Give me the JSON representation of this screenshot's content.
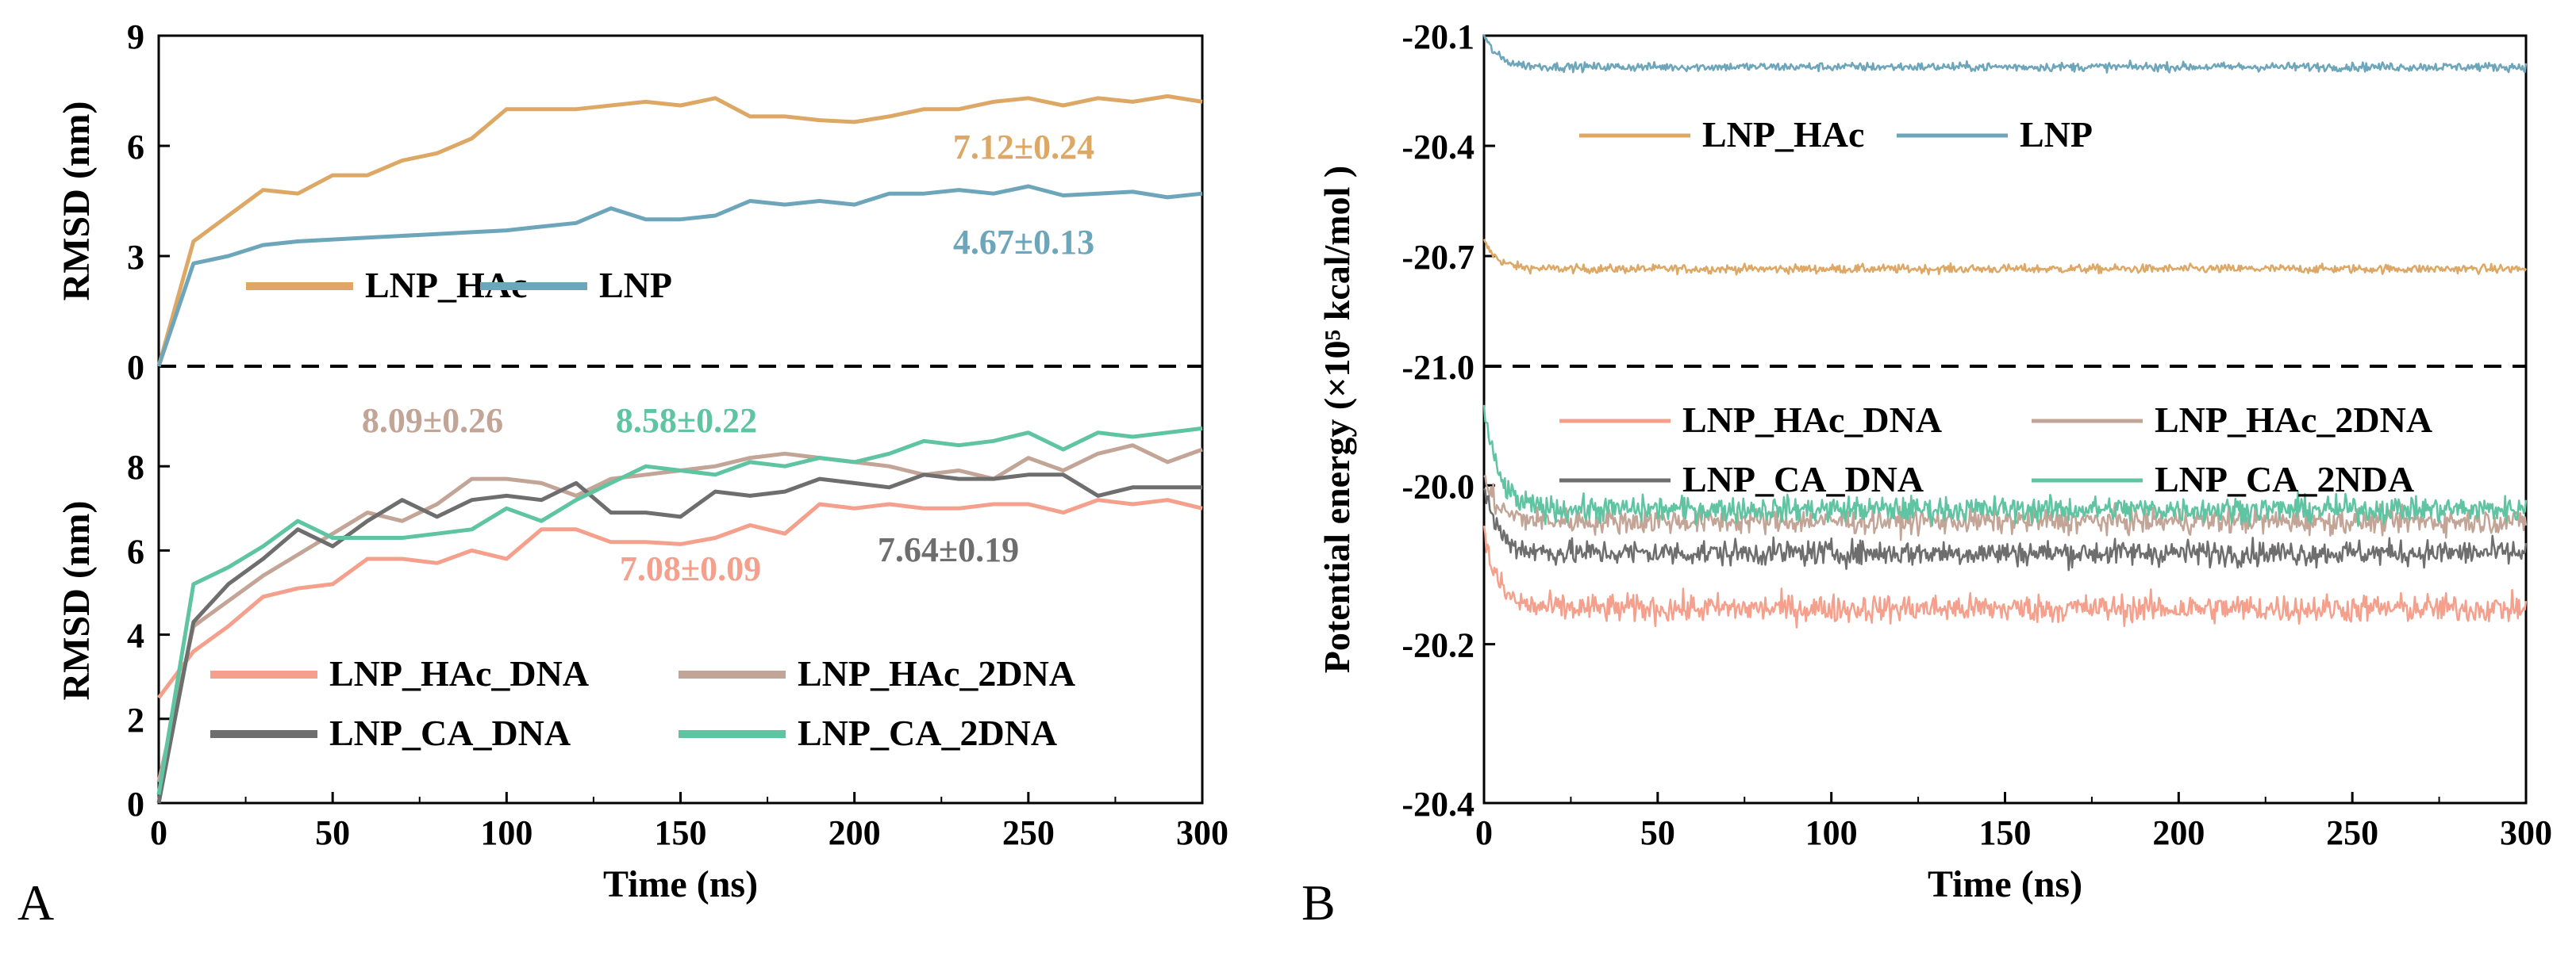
{
  "chart_data": [
    {
      "id": "A",
      "panel_label": "A",
      "type": "line",
      "xlabel": "Time (ns)",
      "xlim": [
        0,
        300
      ],
      "xticks": [
        "0",
        "50",
        "100",
        "150",
        "200",
        "250",
        "300"
      ],
      "subplots": [
        {
          "ylabel": "RMSD (nm)",
          "ylim": [
            0,
            9
          ],
          "yticks": [
            "0",
            "3",
            "6",
            "9"
          ],
          "legend": "middle-left, horizontal",
          "series": [
            {
              "name": "LNP_HAc",
              "color": "#DDA865",
              "x": [
                0,
                10,
                20,
                30,
                40,
                50,
                60,
                70,
                80,
                90,
                100,
                110,
                120,
                130,
                140,
                150,
                160,
                170,
                180,
                190,
                200,
                210,
                220,
                230,
                240,
                250,
                260,
                270,
                280,
                290,
                300
              ],
              "values": [
                0,
                3.4,
                4.1,
                4.8,
                4.7,
                5.2,
                5.2,
                5.6,
                5.8,
                6.2,
                7.0,
                7.0,
                7.0,
                7.1,
                7.2,
                7.1,
                7.3,
                6.8,
                6.8,
                6.7,
                6.65,
                6.8,
                7.0,
                7.0,
                7.2,
                7.3,
                7.1,
                7.3,
                7.2,
                7.35,
                7.2
              ]
            },
            {
              "name": "LNP",
              "color": "#6DA6BB",
              "x": [
                0,
                10,
                20,
                30,
                40,
                50,
                60,
                70,
                80,
                90,
                100,
                110,
                120,
                130,
                140,
                150,
                160,
                170,
                180,
                190,
                200,
                210,
                220,
                230,
                240,
                250,
                260,
                270,
                280,
                290,
                300
              ],
              "values": [
                0,
                2.8,
                3.0,
                3.3,
                3.4,
                3.45,
                3.5,
                3.55,
                3.6,
                3.65,
                3.7,
                3.8,
                3.9,
                4.3,
                4.0,
                4.0,
                4.1,
                4.5,
                4.4,
                4.5,
                4.4,
                4.7,
                4.7,
                4.8,
                4.7,
                4.9,
                4.65,
                4.7,
                4.75,
                4.6,
                4.7
              ]
            }
          ],
          "annotations": [
            {
              "text": "7.12±0.24",
              "color": "#DDA865"
            },
            {
              "text": "4.67±0.13",
              "color": "#6DA6BB"
            }
          ]
        },
        {
          "ylabel": "RMSD (nm)",
          "ylim": [
            0,
            10
          ],
          "yticks": [
            "0",
            "2",
            "4",
            "6",
            "8"
          ],
          "legend": "bottom-left, 2x2",
          "series": [
            {
              "name": "LNP_HAc_DNA",
              "color": "#F4A08C",
              "x": [
                0,
                10,
                20,
                30,
                40,
                50,
                60,
                70,
                80,
                90,
                100,
                110,
                120,
                130,
                140,
                150,
                160,
                170,
                180,
                190,
                200,
                210,
                220,
                230,
                240,
                250,
                260,
                270,
                280,
                290,
                300
              ],
              "values": [
                2.5,
                3.6,
                4.2,
                4.9,
                5.1,
                5.2,
                5.8,
                5.8,
                5.7,
                6.0,
                5.8,
                6.5,
                6.5,
                6.2,
                6.2,
                6.15,
                6.3,
                6.6,
                6.4,
                7.1,
                7.0,
                7.1,
                7.0,
                7.0,
                7.1,
                7.1,
                6.9,
                7.2,
                7.1,
                7.2,
                7.0
              ]
            },
            {
              "name": "LNP_HAc_2DNA",
              "color": "#C3A597",
              "x": [
                0,
                10,
                20,
                30,
                40,
                50,
                60,
                70,
                80,
                90,
                100,
                110,
                120,
                130,
                140,
                150,
                160,
                170,
                180,
                190,
                200,
                210,
                220,
                230,
                240,
                250,
                260,
                270,
                280,
                290,
                300
              ],
              "values": [
                0.5,
                4.2,
                4.8,
                5.4,
                5.9,
                6.4,
                6.9,
                6.7,
                7.1,
                7.7,
                7.7,
                7.6,
                7.3,
                7.7,
                7.8,
                7.9,
                8.0,
                8.2,
                8.3,
                8.2,
                8.1,
                8.0,
                7.8,
                7.9,
                7.7,
                8.2,
                7.9,
                8.3,
                8.5,
                8.1,
                8.4
              ]
            },
            {
              "name": "LNP_CA_DNA",
              "color": "#6E6E6E",
              "x": [
                0,
                10,
                20,
                30,
                40,
                50,
                60,
                70,
                80,
                90,
                100,
                110,
                120,
                130,
                140,
                150,
                160,
                170,
                180,
                190,
                200,
                210,
                220,
                230,
                240,
                250,
                260,
                270,
                280,
                290,
                300
              ],
              "values": [
                0,
                4.3,
                5.2,
                5.8,
                6.5,
                6.1,
                6.7,
                7.2,
                6.8,
                7.2,
                7.3,
                7.2,
                7.6,
                6.9,
                6.9,
                6.8,
                7.4,
                7.3,
                7.4,
                7.7,
                7.6,
                7.5,
                7.8,
                7.7,
                7.7,
                7.8,
                7.8,
                7.3,
                7.5,
                7.5,
                7.5
              ]
            },
            {
              "name": "LNP_CA_2DNA",
              "color": "#5FC4A1",
              "x": [
                0,
                10,
                20,
                30,
                40,
                50,
                60,
                70,
                80,
                90,
                100,
                110,
                120,
                130,
                140,
                150,
                160,
                170,
                180,
                190,
                200,
                210,
                220,
                230,
                240,
                250,
                260,
                270,
                280,
                290,
                300
              ],
              "values": [
                0.2,
                5.2,
                5.6,
                6.1,
                6.7,
                6.3,
                6.3,
                6.3,
                6.4,
                6.5,
                7.0,
                6.7,
                7.2,
                7.6,
                8.0,
                7.9,
                7.8,
                8.1,
                8.0,
                8.2,
                8.1,
                8.3,
                8.6,
                8.5,
                8.6,
                8.8,
                8.4,
                8.8,
                8.7,
                8.8,
                8.9
              ]
            }
          ],
          "annotations": [
            {
              "text": "8.09±0.26",
              "color": "#C3A597"
            },
            {
              "text": "8.58±0.22",
              "color": "#5FC4A1"
            },
            {
              "text": "7.08±0.09",
              "color": "#F4A08C"
            },
            {
              "text": "7.64±0.19",
              "color": "#6E6E6E"
            }
          ]
        }
      ]
    },
    {
      "id": "B",
      "panel_label": "B",
      "type": "line",
      "xlabel": "Time (ns)",
      "ylabel": "Potential energy (×10⁵ kcal/mol )",
      "xlim": [
        0,
        300
      ],
      "xticks": [
        "0",
        "50",
        "100",
        "150",
        "200",
        "250",
        "300"
      ],
      "subplots": [
        {
          "ylim": [
            -21.0,
            -20.1
          ],
          "yticks": [
            "-20.1",
            "-20.4",
            "-20.7",
            "-21.0"
          ],
          "legend": "top-left, horizontal",
          "series": [
            {
              "name": "LNP_HAc",
              "color": "#DDA865",
              "mean": -20.735,
              "initial": -20.66,
              "noise": 0.006
            },
            {
              "name": "LNP",
              "color": "#6DA6BB",
              "mean": -20.185,
              "initial": -20.1,
              "noise": 0.006
            }
          ]
        },
        {
          "ylim": [
            -20.4,
            -19.85
          ],
          "yticks": [
            "-20.0",
            "-20.2",
            "-20.4"
          ],
          "legend": "top, 2x2",
          "series": [
            {
              "name": "LNP_HAc_DNA",
              "color": "#F4A08C",
              "mean": -20.155,
              "initial": -20.06,
              "noise": 0.009
            },
            {
              "name": "LNP_HAc_2DNA",
              "color": "#C3A597",
              "mean": -20.045,
              "initial": -19.99,
              "noise": 0.008
            },
            {
              "name": "LNP_CA_DNA",
              "color": "#6E6E6E",
              "mean": -20.085,
              "initial": -20.0,
              "noise": 0.008
            },
            {
              "name": "LNP_CA_2NDA",
              "color": "#5FC4A1",
              "mean": -20.03,
              "initial": -19.9,
              "noise": 0.008
            }
          ]
        }
      ]
    }
  ]
}
